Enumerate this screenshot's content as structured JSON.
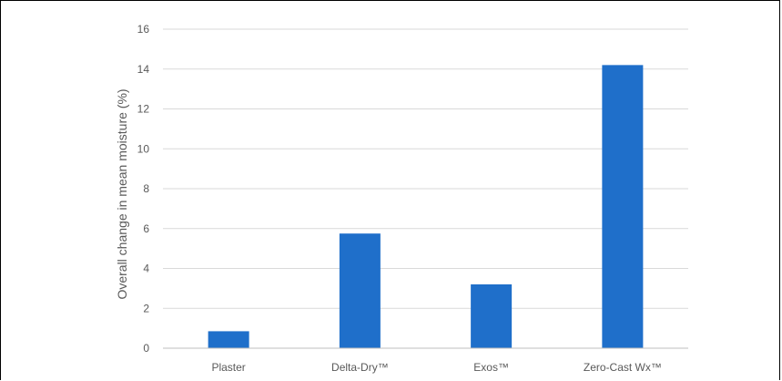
{
  "chart_data": {
    "type": "bar",
    "title": "",
    "xlabel": "",
    "ylabel": "Overall change in mean moisture (%)",
    "categories": [
      "Plaster",
      "Delta-Dry™",
      "Exos™",
      "Zero-Cast Wx™"
    ],
    "values": [
      0.85,
      5.75,
      3.2,
      14.2
    ],
    "ylim": [
      0,
      16
    ],
    "yticks": [
      "0",
      "2",
      "4",
      "6",
      "8",
      "10",
      "12",
      "14",
      "16"
    ],
    "grid": true,
    "legend": "none",
    "bar_color": "#1f6fca",
    "grid_color": "#d9d9d9",
    "axis_color": "#bfbfbf"
  }
}
